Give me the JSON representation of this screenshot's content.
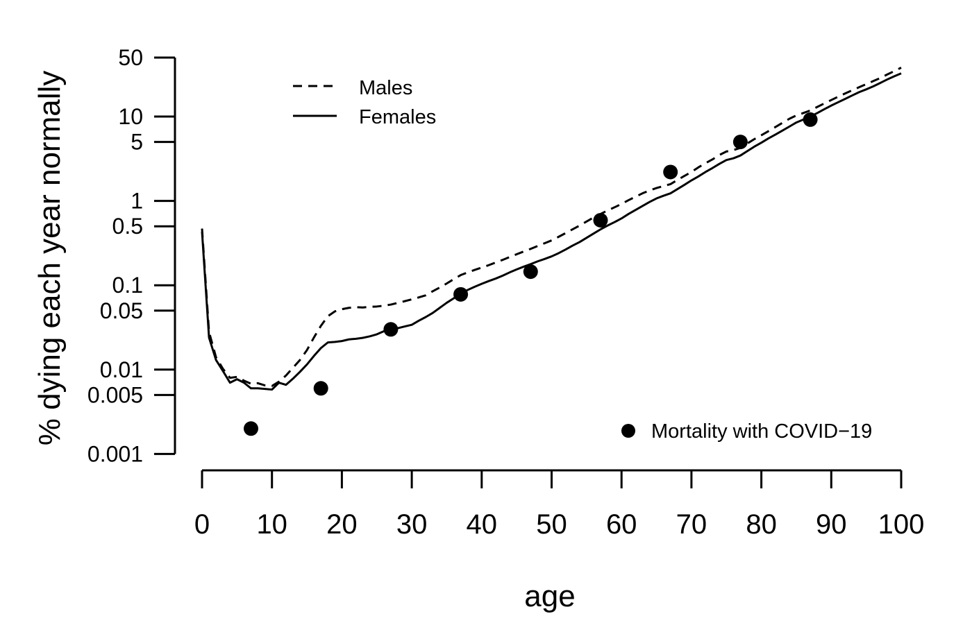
{
  "page": {
    "background": "#ffffff",
    "foreground": "#000000"
  },
  "chart_data": {
    "type": "line",
    "title": "",
    "xlabel": "age",
    "ylabel": "% dying each year normally",
    "grid": false,
    "x_axis": {
      "min": 0,
      "max": 100,
      "ticks": [
        0,
        10,
        20,
        30,
        40,
        50,
        60,
        70,
        80,
        90,
        100
      ]
    },
    "y_axis": {
      "scale": "log",
      "min": 0.001,
      "max": 50,
      "tick_values": [
        50,
        10,
        5,
        1,
        0.5,
        0.1,
        0.05,
        0.01,
        0.005,
        0.001
      ],
      "tick_labels": [
        "50",
        "10",
        "5",
        "1",
        "0.5",
        "0.1",
        "0.05",
        "0.01",
        "0.005",
        "0.001"
      ]
    },
    "legend": {
      "lines_position": "top-left-inside",
      "points_position": "bottom-right-inside"
    },
    "ages_start": 0,
    "ages_step": 1,
    "series": [
      {
        "name": "Males",
        "style": "dashed",
        "values": [
          0.47,
          0.028,
          0.014,
          0.0102,
          0.008,
          0.0082,
          0.0074,
          0.0068,
          0.0069,
          0.0065,
          0.0064,
          0.0072,
          0.0085,
          0.0105,
          0.013,
          0.017,
          0.024,
          0.033,
          0.043,
          0.049,
          0.052,
          0.054,
          0.055,
          0.0545,
          0.0555,
          0.056,
          0.0572,
          0.059,
          0.0618,
          0.0648,
          0.068,
          0.0718,
          0.076,
          0.085,
          0.094,
          0.105,
          0.118,
          0.132,
          0.142,
          0.152,
          0.162,
          0.173,
          0.186,
          0.2,
          0.216,
          0.233,
          0.251,
          0.27,
          0.292,
          0.315,
          0.34,
          0.375,
          0.415,
          0.46,
          0.51,
          0.57,
          0.635,
          0.7,
          0.77,
          0.84,
          0.92,
          1.02,
          1.12,
          1.23,
          1.33,
          1.42,
          1.5,
          1.58,
          1.77,
          1.98,
          2.2,
          2.5,
          2.8,
          3.1,
          3.5,
          3.85,
          4.0,
          4.25,
          4.8,
          5.4,
          6.0,
          6.7,
          7.5,
          8.4,
          9.4,
          10.3,
          11.0,
          11.8,
          13.0,
          14.3,
          15.7,
          17.2,
          18.8,
          20.5,
          22.3,
          24.2,
          26.3,
          28.6,
          31.5,
          34.5,
          38.0
        ]
      },
      {
        "name": "Females",
        "style": "solid",
        "values": [
          0.43,
          0.024,
          0.013,
          0.0096,
          0.007,
          0.0077,
          0.007,
          0.006,
          0.006,
          0.0059,
          0.0058,
          0.007,
          0.0066,
          0.0078,
          0.0094,
          0.0115,
          0.0145,
          0.018,
          0.021,
          0.0213,
          0.0218,
          0.0228,
          0.0232,
          0.0238,
          0.0248,
          0.0262,
          0.0285,
          0.0295,
          0.031,
          0.0325,
          0.034,
          0.038,
          0.042,
          0.047,
          0.054,
          0.062,
          0.07,
          0.08,
          0.088,
          0.096,
          0.104,
          0.112,
          0.12,
          0.13,
          0.142,
          0.154,
          0.166,
          0.178,
          0.192,
          0.205,
          0.22,
          0.24,
          0.265,
          0.295,
          0.325,
          0.365,
          0.41,
          0.46,
          0.51,
          0.56,
          0.62,
          0.7,
          0.78,
          0.87,
          0.97,
          1.07,
          1.15,
          1.23,
          1.38,
          1.55,
          1.75,
          1.95,
          2.2,
          2.45,
          2.75,
          3.05,
          3.2,
          3.45,
          3.9,
          4.4,
          4.9,
          5.5,
          6.1,
          6.8,
          7.6,
          8.5,
          9.2,
          10.0,
          11.0,
          12.2,
          13.5,
          14.8,
          16.2,
          17.8,
          19.5,
          21.0,
          22.8,
          25.0,
          27.5,
          30.0,
          32.5
        ]
      }
    ],
    "points": {
      "name": "Mortality with COVID−19",
      "marker": "filled-circle",
      "x": [
        7,
        17,
        27,
        37,
        47,
        57,
        67,
        77,
        87
      ],
      "values": [
        0.002,
        0.006,
        0.03,
        0.078,
        0.145,
        0.59,
        2.2,
        5.0,
        9.2
      ]
    }
  }
}
